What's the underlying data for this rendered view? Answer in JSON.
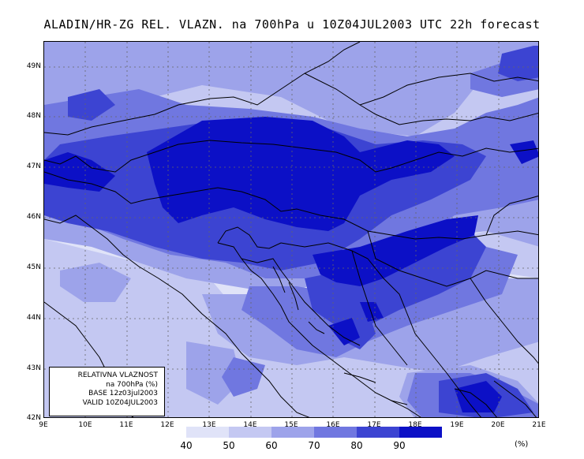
{
  "title": "ALADIN/HR-ZG REL. VLAZN. na 700hPa u 10Z04JUL2003 UTC 22h forecast",
  "lat_labels": [
    "49N",
    "48N",
    "47N",
    "46N",
    "45N",
    "44N",
    "43N",
    "42N"
  ],
  "lon_labels": [
    "9E",
    "10E",
    "11E",
    "12E",
    "13E",
    "14E",
    "15E",
    "16E",
    "17E",
    "18E",
    "19E",
    "20E",
    "21E"
  ],
  "info_box": {
    "line1": "RELATIVNA VLAZNOST",
    "line2": "na 700hPa (%)",
    "line3": "BASE 12z03jul2003",
    "line4": "VALID 10Z04JUL2003"
  },
  "colorbar": {
    "labels": [
      "40",
      "50",
      "60",
      "70",
      "80",
      "90"
    ],
    "colors": [
      "#e0e3f8",
      "#c4c8f2",
      "#9da3ea",
      "#7077e0",
      "#3c44d2",
      "#0c10c6"
    ],
    "unit": "(%)"
  }
}
